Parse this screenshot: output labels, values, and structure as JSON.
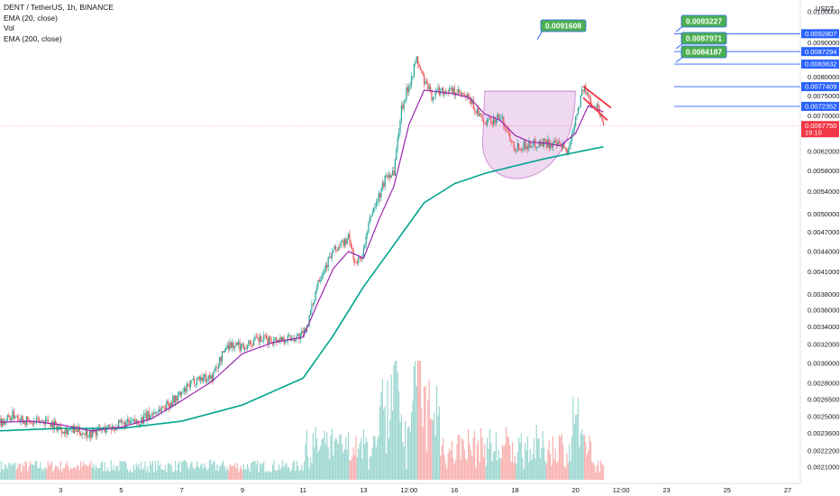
{
  "header": {
    "symbol_line": "DENT / TetherUS, 1h, BINANCE",
    "indicators": [
      "EMA (20, close)",
      "Vol",
      "EMA (200, close)"
    ]
  },
  "axis": {
    "currency": "USDT",
    "price_ticks": [
      {
        "label": "0.0100000",
        "v": 0.01
      },
      {
        "label": "0.0090000",
        "v": 0.009
      },
      {
        "label": "0.0080000",
        "v": 0.008
      },
      {
        "label": "0.0075000",
        "v": 0.0075
      },
      {
        "label": "0.0070000",
        "v": 0.007
      },
      {
        "label": "0.0062000",
        "v": 0.0062
      },
      {
        "label": "0.0058000",
        "v": 0.0058
      },
      {
        "label": "0.0054000",
        "v": 0.0054
      },
      {
        "label": "0.0050000",
        "v": 0.005
      },
      {
        "label": "0.0047000",
        "v": 0.0047
      },
      {
        "label": "0.0044000",
        "v": 0.0044
      },
      {
        "label": "0.0041000",
        "v": 0.0041
      },
      {
        "label": "0.0038000",
        "v": 0.0038
      },
      {
        "label": "0.0036000",
        "v": 0.0036
      },
      {
        "label": "0.0034000",
        "v": 0.0034
      },
      {
        "label": "0.0032000",
        "v": 0.0032
      },
      {
        "label": "0.0030000",
        "v": 0.003
      },
      {
        "label": "0.0028000",
        "v": 0.0028
      },
      {
        "label": "0.0026500",
        "v": 0.00265
      },
      {
        "label": "0.0025000",
        "v": 0.0025
      },
      {
        "label": "0.0023600",
        "v": 0.00236
      },
      {
        "label": "0.0022200",
        "v": 0.00222
      },
      {
        "label": "0.0021000",
        "v": 0.0021
      }
    ],
    "time_ticks": [
      {
        "label": "3",
        "h": 48
      },
      {
        "label": "5",
        "h": 96
      },
      {
        "label": "7",
        "h": 144
      },
      {
        "label": "9",
        "h": 192
      },
      {
        "label": "11",
        "h": 240
      },
      {
        "label": "13",
        "h": 288
      },
      {
        "label": "12:00",
        "h": 324
      },
      {
        "label": "16",
        "h": 360
      },
      {
        "label": "18",
        "h": 408
      },
      {
        "label": "20",
        "h": 456
      },
      {
        "label": "12:00",
        "h": 492
      },
      {
        "label": "23",
        "h": 528
      },
      {
        "label": "25",
        "h": 576
      },
      {
        "label": "27",
        "h": 624
      }
    ]
  },
  "price_tags": [
    {
      "label": "0.0092807",
      "v": 0.0092807,
      "color": "#2962ff"
    },
    {
      "label": "0.0087294",
      "v": 0.0087294,
      "color": "#2962ff"
    },
    {
      "label": "0.0083632",
      "v": 0.0083632,
      "color": "#2962ff"
    },
    {
      "label": "0.0077409",
      "v": 0.0077409,
      "color": "#2962ff"
    },
    {
      "label": "0.0072352",
      "v": 0.0072352,
      "color": "#2962ff"
    },
    {
      "label": "0.0067750",
      "v": 0.006775,
      "color": "#f23645",
      "countdown": "19:10"
    }
  ],
  "callouts": [
    {
      "label": "0.0091608",
      "v": 0.0091608,
      "h": 420
    },
    {
      "label": "0.0093227",
      "v": 0.0093227,
      "h": 540
    },
    {
      "label": "0.0087971",
      "v": 0.0087971,
      "h": 540
    },
    {
      "label": "0.0084187",
      "v": 0.0084187,
      "h": 540
    }
  ],
  "chart_data": {
    "type": "candlestick",
    "interval": "1h",
    "scale": "log",
    "ylim": [
      0.00205,
      0.0101
    ],
    "colors": {
      "up": "#26a69a",
      "down": "#ef5350",
      "ema20": "#9c27b0",
      "ema200": "#00a38e",
      "cup": "#ce93d8"
    },
    "close_path": [
      {
        "h": 0,
        "v": 0.00245
      },
      {
        "h": 12,
        "v": 0.00252
      },
      {
        "h": 24,
        "v": 0.00244
      },
      {
        "h": 36,
        "v": 0.00247
      },
      {
        "h": 48,
        "v": 0.0024
      },
      {
        "h": 60,
        "v": 0.00238
      },
      {
        "h": 72,
        "v": 0.00236
      },
      {
        "h": 84,
        "v": 0.0024
      },
      {
        "h": 96,
        "v": 0.00243
      },
      {
        "h": 108,
        "v": 0.00245
      },
      {
        "h": 120,
        "v": 0.00252
      },
      {
        "h": 132,
        "v": 0.0026
      },
      {
        "h": 144,
        "v": 0.0027
      },
      {
        "h": 156,
        "v": 0.00285
      },
      {
        "h": 168,
        "v": 0.00286
      },
      {
        "h": 180,
        "v": 0.0032
      },
      {
        "h": 192,
        "v": 0.00318
      },
      {
        "h": 204,
        "v": 0.00325
      },
      {
        "h": 216,
        "v": 0.00325
      },
      {
        "h": 228,
        "v": 0.00327
      },
      {
        "h": 240,
        "v": 0.0033
      },
      {
        "h": 246,
        "v": 0.00355
      },
      {
        "h": 252,
        "v": 0.004
      },
      {
        "h": 264,
        "v": 0.0044
      },
      {
        "h": 276,
        "v": 0.0046
      },
      {
        "h": 282,
        "v": 0.0042
      },
      {
        "h": 288,
        "v": 0.0044
      },
      {
        "h": 294,
        "v": 0.005
      },
      {
        "h": 300,
        "v": 0.0053
      },
      {
        "h": 306,
        "v": 0.0057
      },
      {
        "h": 312,
        "v": 0.0058
      },
      {
        "h": 318,
        "v": 0.0072
      },
      {
        "h": 324,
        "v": 0.0078
      },
      {
        "h": 330,
        "v": 0.0085
      },
      {
        "h": 336,
        "v": 0.0079
      },
      {
        "h": 342,
        "v": 0.0075
      },
      {
        "h": 348,
        "v": 0.00765
      },
      {
        "h": 360,
        "v": 0.0076
      },
      {
        "h": 372,
        "v": 0.0074
      },
      {
        "h": 384,
        "v": 0.0068
      },
      {
        "h": 396,
        "v": 0.007
      },
      {
        "h": 408,
        "v": 0.0063
      },
      {
        "h": 420,
        "v": 0.00635
      },
      {
        "h": 432,
        "v": 0.0064
      },
      {
        "h": 444,
        "v": 0.0063
      },
      {
        "h": 450,
        "v": 0.0062
      },
      {
        "h": 456,
        "v": 0.007
      },
      {
        "h": 462,
        "v": 0.0077
      },
      {
        "h": 468,
        "v": 0.00735
      },
      {
        "h": 474,
        "v": 0.0072
      },
      {
        "h": 478,
        "v": 0.006775
      }
    ],
    "ema20": [
      {
        "h": 0,
        "v": 0.00245
      },
      {
        "h": 24,
        "v": 0.00246
      },
      {
        "h": 48,
        "v": 0.00243
      },
      {
        "h": 72,
        "v": 0.00238
      },
      {
        "h": 96,
        "v": 0.00241
      },
      {
        "h": 120,
        "v": 0.00248
      },
      {
        "h": 144,
        "v": 0.00264
      },
      {
        "h": 168,
        "v": 0.00282
      },
      {
        "h": 192,
        "v": 0.0031
      },
      {
        "h": 216,
        "v": 0.00322
      },
      {
        "h": 240,
        "v": 0.00328
      },
      {
        "h": 252,
        "v": 0.0037
      },
      {
        "h": 264,
        "v": 0.00415
      },
      {
        "h": 276,
        "v": 0.0044
      },
      {
        "h": 288,
        "v": 0.0043
      },
      {
        "h": 300,
        "v": 0.0049
      },
      {
        "h": 312,
        "v": 0.0055
      },
      {
        "h": 324,
        "v": 0.0068
      },
      {
        "h": 336,
        "v": 0.00765
      },
      {
        "h": 348,
        "v": 0.0076
      },
      {
        "h": 360,
        "v": 0.00755
      },
      {
        "h": 372,
        "v": 0.00745
      },
      {
        "h": 384,
        "v": 0.00705
      },
      {
        "h": 396,
        "v": 0.0069
      },
      {
        "h": 408,
        "v": 0.00655
      },
      {
        "h": 420,
        "v": 0.0064
      },
      {
        "h": 432,
        "v": 0.00638
      },
      {
        "h": 444,
        "v": 0.00632
      },
      {
        "h": 456,
        "v": 0.0066
      },
      {
        "h": 466,
        "v": 0.00725
      },
      {
        "h": 478,
        "v": 0.0071
      }
    ],
    "ema200": [
      {
        "h": 0,
        "v": 0.00238
      },
      {
        "h": 48,
        "v": 0.0024
      },
      {
        "h": 96,
        "v": 0.0024
      },
      {
        "h": 144,
        "v": 0.00246
      },
      {
        "h": 192,
        "v": 0.0026
      },
      {
        "h": 240,
        "v": 0.00285
      },
      {
        "h": 264,
        "v": 0.0033
      },
      {
        "h": 288,
        "v": 0.0039
      },
      {
        "h": 312,
        "v": 0.0045
      },
      {
        "h": 336,
        "v": 0.0052
      },
      {
        "h": 360,
        "v": 0.00555
      },
      {
        "h": 384,
        "v": 0.00575
      },
      {
        "h": 408,
        "v": 0.0059
      },
      {
        "h": 432,
        "v": 0.00605
      },
      {
        "h": 456,
        "v": 0.00618
      },
      {
        "h": 478,
        "v": 0.0063
      }
    ],
    "cup": {
      "h_start": 384,
      "h_end": 450,
      "top_v": 0.00762,
      "bottom_v": 0.00568
    }
  }
}
